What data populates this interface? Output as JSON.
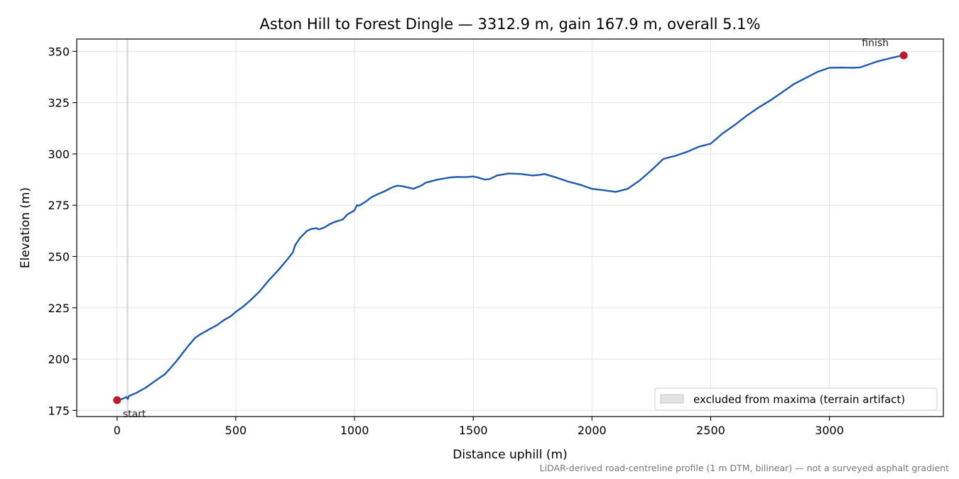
{
  "chart_data": {
    "type": "line",
    "title": "Aston Hill to Forest Dingle — 3312.9 m, gain 167.9 m, overall 5.1%",
    "xlabel": "Distance uphill (m)",
    "ylabel": "Elevation (m)",
    "xlim": [
      -170,
      3480
    ],
    "ylim": [
      172,
      356
    ],
    "xticks": [
      0,
      500,
      1000,
      1500,
      2000,
      2500,
      3000
    ],
    "yticks": [
      175,
      200,
      225,
      250,
      275,
      300,
      325,
      350
    ],
    "grid": true,
    "legend_placement": "lower-right",
    "footnote": "LiDAR-derived road-centreline profile (1 m DTM, bilinear) — not a surveyed asphalt gradient",
    "excluded_region": {
      "label": "excluded from maxima (terrain artifact)",
      "x_range": [
        40,
        48
      ],
      "color": "#d0d0d0"
    },
    "series": [
      {
        "color": "#1f5aab",
        "x": [
          0,
          20,
          40,
          45,
          50,
          80,
          120,
          150,
          180,
          200,
          220,
          250,
          280,
          300,
          330,
          350,
          380,
          420,
          450,
          480,
          500,
          530,
          560,
          600,
          640,
          680,
          720,
          740,
          750,
          770,
          800,
          820,
          840,
          850,
          870,
          900,
          920,
          950,
          970,
          1000,
          1010,
          1020,
          1050,
          1070,
          1100,
          1130,
          1160,
          1180,
          1200,
          1230,
          1250,
          1260,
          1280,
          1300,
          1350,
          1400,
          1430,
          1470,
          1500,
          1520,
          1550,
          1570,
          1600,
          1650,
          1700,
          1750,
          1780,
          1800,
          1850,
          1900,
          1950,
          2000,
          2050,
          2100,
          2150,
          2200,
          2250,
          2300,
          2330,
          2350,
          2400,
          2450,
          2500,
          2550,
          2600,
          2650,
          2700,
          2750,
          2800,
          2850,
          2900,
          2950,
          3000,
          3050,
          3100,
          3130,
          3150,
          3200,
          3250,
          3300,
          3312.9
        ],
        "y": [
          180,
          180.5,
          181.5,
          180.5,
          182,
          183.5,
          186,
          188.5,
          191,
          192.5,
          195,
          199,
          203.5,
          206.5,
          210.5,
          212,
          214,
          216.5,
          219,
          221,
          223,
          225.5,
          228.5,
          233,
          238.5,
          243.5,
          249,
          252,
          255.5,
          259,
          262.5,
          263.5,
          263.8,
          263.2,
          264,
          266,
          267,
          268,
          270.5,
          272.5,
          275,
          274.8,
          277,
          278.8,
          280.5,
          282,
          283.8,
          284.5,
          284.3,
          283.5,
          283,
          283.6,
          284.5,
          286,
          287.5,
          288.5,
          288.8,
          288.7,
          289,
          288.5,
          287.5,
          287.8,
          289.5,
          290.5,
          290.2,
          289.5,
          289.8,
          290.2,
          288.5,
          286.5,
          285,
          283,
          282.3,
          281.5,
          283,
          287,
          292,
          297.5,
          298.5,
          299,
          301,
          303.5,
          305,
          310,
          314,
          318.5,
          322.5,
          326,
          330,
          334,
          337,
          340,
          342,
          342.1,
          342,
          342.2,
          343,
          345,
          346.5,
          347.8,
          348
        ]
      }
    ],
    "endpoints": [
      {
        "label": "start",
        "x": 0,
        "y": 180,
        "color": "#c0182a"
      },
      {
        "label": "finish",
        "x": 3312.9,
        "y": 348,
        "color": "#c0182a"
      }
    ]
  }
}
